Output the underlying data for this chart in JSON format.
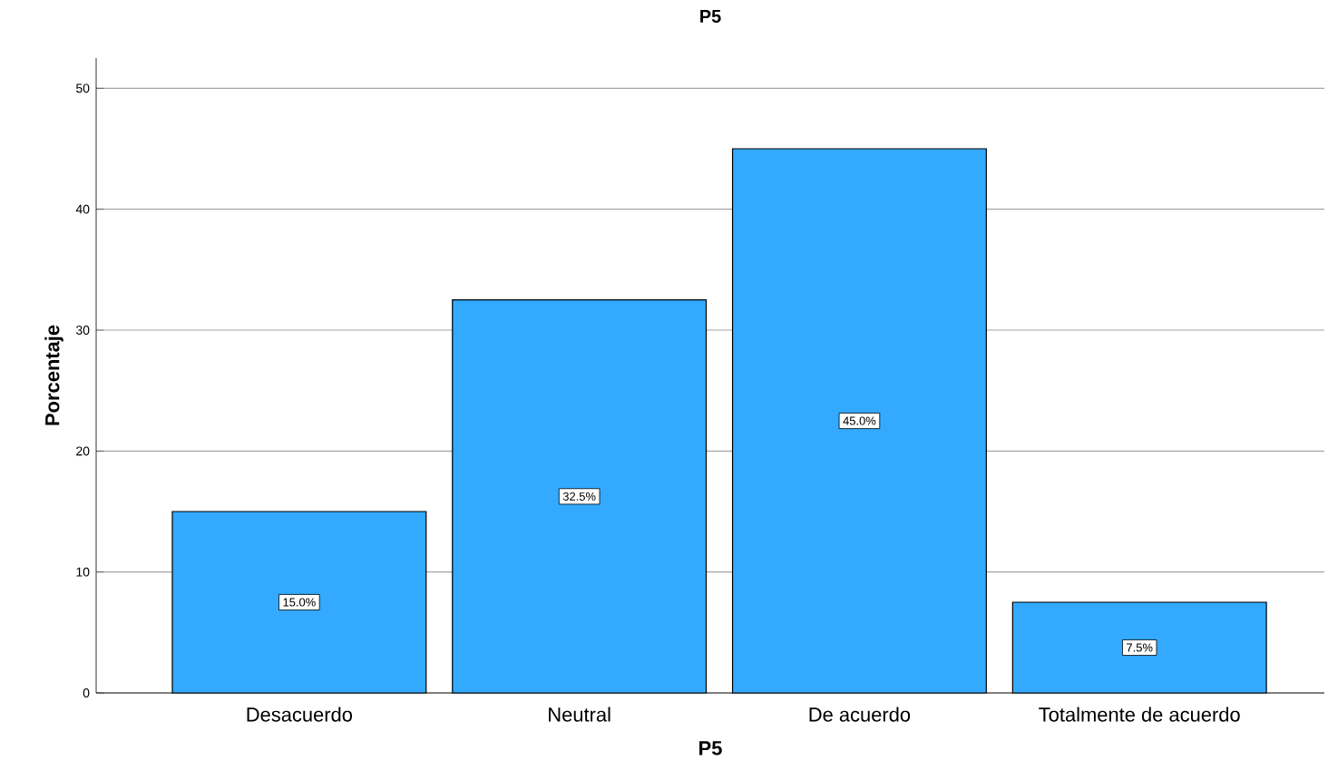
{
  "chart_data": {
    "type": "bar",
    "title": "P5",
    "xlabel": "P5",
    "ylabel": "Porcentaje",
    "categories": [
      "Desacuerdo",
      "Neutral",
      "De acuerdo",
      "Totalmente de acuerdo"
    ],
    "values": [
      15,
      32.5,
      45,
      7.5
    ],
    "value_labels": [
      "15.0%",
      "32.5%",
      "45.0%",
      "7.5%"
    ],
    "color": "#33aaff",
    "ylim": [
      0,
      52.5
    ],
    "yticks": [
      0,
      10,
      20,
      30,
      40,
      50
    ],
    "grid": "y"
  }
}
